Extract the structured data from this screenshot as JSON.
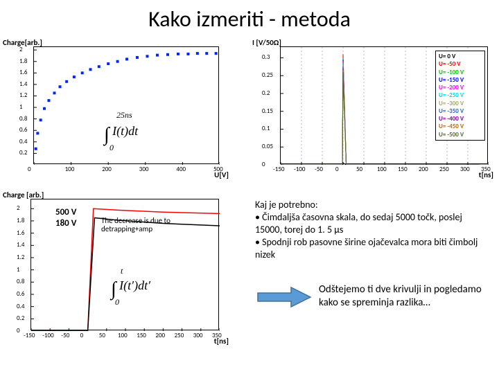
{
  "title": "Kako izmeriti - metoda",
  "chart_tl": {
    "type": "scatter",
    "ylabel": "Charge[arb.]",
    "xlabel": "U[V]",
    "xlim": [
      0,
      500
    ],
    "ylim": [
      0,
      2.05
    ],
    "xticks": [
      0,
      100,
      200,
      300,
      400,
      500
    ],
    "yticks": [
      0.2,
      0.4,
      0.6,
      0.8,
      1,
      1.2,
      1.4,
      1.6,
      1.8,
      2
    ],
    "marker_color": "#0026ff",
    "marker_size": 4,
    "bg": "#ffffff",
    "points_x": [
      5,
      10,
      18,
      28,
      40,
      55,
      70,
      88,
      108,
      130,
      152,
      175,
      200,
      225,
      250,
      278,
      305,
      332,
      360,
      388,
      415,
      440,
      465,
      490
    ],
    "points_y": [
      0.28,
      0.55,
      0.78,
      0.98,
      1.12,
      1.25,
      1.36,
      1.45,
      1.53,
      1.6,
      1.66,
      1.71,
      1.76,
      1.8,
      1.84,
      1.87,
      1.89,
      1.91,
      1.92,
      1.93,
      1.93,
      1.94,
      1.94,
      1.94
    ]
  },
  "formula_tl": "∫₀²⁵ⁿˢ I(t) dt",
  "chart_tr": {
    "type": "line",
    "ylabel": "I [V/50Ω]",
    "xlabel": "t[ns]",
    "xlim": [
      -150,
      350
    ],
    "ylim": [
      0,
      0.33
    ],
    "xticks": [
      -150,
      -100,
      -50,
      0,
      50,
      100,
      150,
      200,
      250,
      300,
      350
    ],
    "yticks": [
      0,
      0.05,
      0.1,
      0.15,
      0.2,
      0.25,
      0.3
    ],
    "grid_x": [
      -100,
      -50,
      0,
      50,
      100,
      150,
      200,
      250,
      300
    ],
    "bg": "#ffffff",
    "grid_color": "#bbbbbb",
    "peak_x": 0,
    "peak_width": 8,
    "series": [
      {
        "label": "U= 0  V",
        "color": "#000000",
        "peak": 0.005
      },
      {
        "label": "U= -50  V",
        "color": "#ff0000",
        "peak": 0.31
      },
      {
        "label": "U= -100  V",
        "color": "#00cc00",
        "peak": 0.3
      },
      {
        "label": "U= -150  V",
        "color": "#0000ff",
        "peak": 0.295
      },
      {
        "label": "U= -200  V",
        "color": "#ff00ff",
        "peak": 0.29
      },
      {
        "label": "U= -250  V",
        "color": "#00dddd",
        "peak": 0.285
      },
      {
        "label": "U= -300  V",
        "color": "#aaaa66",
        "peak": 0.28
      },
      {
        "label": "U= -350  V",
        "color": "#3366cc",
        "peak": 0.275
      },
      {
        "label": "U= -400  V",
        "color": "#8800aa",
        "peak": 0.27
      },
      {
        "label": "U= -450  V",
        "color": "#cc6600",
        "peak": 0.265
      },
      {
        "label": "U= -500  V",
        "color": "#556b2f",
        "peak": 0.26
      }
    ]
  },
  "chart_bl": {
    "type": "line",
    "ylabel": "Charge [arb.]",
    "xlabel": "t[ns]",
    "xlim": [
      -150,
      350
    ],
    "ylim": [
      0,
      2.15
    ],
    "xticks": [
      -150,
      -100,
      -50,
      0,
      50,
      100,
      150,
      200,
      250,
      300,
      350
    ],
    "yticks": [
      0,
      0.2,
      0.4,
      0.6,
      0.8,
      1,
      1.2,
      1.4,
      1.6,
      1.8,
      2
    ],
    "bg": "#ffffff",
    "series": [
      {
        "label": "500 V",
        "color": "#ff0000",
        "plateau": 2.0,
        "rise_start": 0,
        "rise_end": 15,
        "decay_to": 1.92
      },
      {
        "label": "180 V",
        "color": "#000000",
        "plateau": 1.85,
        "rise_start": 0,
        "rise_end": 18,
        "decay_to": 1.72
      }
    ],
    "annot_500": "500 V",
    "annot_180": "180 V",
    "annot_decrease": "The decrease is due to detrapping+amp"
  },
  "formula_bl": "∫₀ᵗ I(t′) dt′",
  "text_block": {
    "heading": "Kaj je potrebno:",
    "b1": "• Čimdaljša časovna skala, do sedaj 5000 točk, poslej 15000, torej do 1. 5 μs",
    "b2": "• Spodnji rob pasovne širine ojačevalca mora biti čimbolj nizek",
    "arrow_text": "Odštejemo ti dve krivulji in pogledamo kako se spreminja razlika…",
    "arrow_color": "#5b9bd5",
    "arrow_border": "#41719c"
  }
}
